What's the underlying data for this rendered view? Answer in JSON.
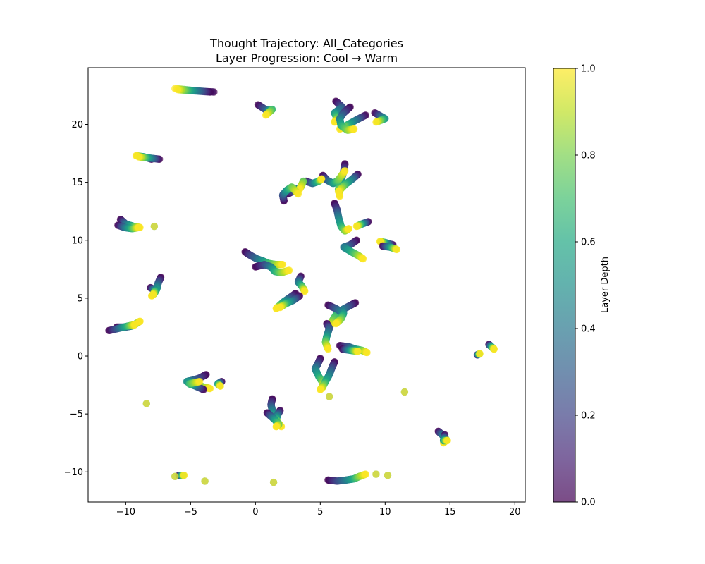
{
  "chart_data": {
    "type": "scatter",
    "title": "Thought Trajectory: All_Categories",
    "subtitle": "Layer Progression: Cool → Warm",
    "xlabel": "",
    "ylabel": "",
    "xlim": [
      -12.9,
      20.8
    ],
    "ylim": [
      -12.6,
      24.9
    ],
    "xticks": [
      -10,
      -5,
      0,
      5,
      10,
      15,
      20
    ],
    "yticks": [
      -10,
      -5,
      0,
      5,
      10,
      15,
      20
    ],
    "xtick_labels": [
      "−10",
      "−5",
      "0",
      "5",
      "10",
      "15",
      "20"
    ],
    "ytick_labels": [
      "−10",
      "−5",
      "0",
      "5",
      "10",
      "15",
      "20"
    ],
    "colormap": "viridis",
    "marker_alpha": 0.7,
    "colorbar": {
      "label": "Layer Depth",
      "range": [
        0.0,
        1.0
      ],
      "ticks": [
        "0.0",
        "0.2",
        "0.4",
        "0.6",
        "0.8",
        "1.0"
      ]
    },
    "trajectories": [
      {
        "points": [
          [
            -3.2,
            22.8
          ],
          [
            -4.5,
            22.9
          ],
          [
            -6.2,
            23.1
          ]
        ]
      },
      {
        "points": [
          [
            -3.5,
            22.8
          ],
          [
            -4.8,
            22.9
          ],
          [
            -6.0,
            23.0
          ]
        ]
      },
      {
        "points": [
          [
            0.2,
            21.7
          ],
          [
            0.9,
            21.2
          ],
          [
            1.3,
            21.3
          ],
          [
            0.8,
            20.8
          ]
        ]
      },
      {
        "points": [
          [
            -8.0,
            17.0
          ],
          [
            -8.6,
            17.2
          ],
          [
            -9.2,
            17.3
          ]
        ]
      },
      {
        "points": [
          [
            -7.4,
            17.0
          ],
          [
            -8.2,
            17.1
          ],
          [
            -9.0,
            17.2
          ]
        ]
      },
      {
        "points": [
          [
            8.5,
            20.8
          ],
          [
            7.8,
            20.4
          ],
          [
            7.0,
            19.9
          ],
          [
            6.5,
            19.6
          ]
        ]
      },
      {
        "points": [
          [
            9.2,
            21.0
          ],
          [
            10.0,
            20.5
          ],
          [
            9.3,
            20.2
          ]
        ]
      },
      {
        "points": [
          [
            6.2,
            22.0
          ],
          [
            6.7,
            21.5
          ],
          [
            6.1,
            21.0
          ],
          [
            6.3,
            20.5
          ],
          [
            6.1,
            20.2
          ]
        ]
      },
      {
        "points": [
          [
            7.3,
            21.5
          ],
          [
            6.8,
            21.0
          ],
          [
            6.5,
            20.5
          ],
          [
            6.6,
            19.9
          ],
          [
            7.1,
            19.5
          ],
          [
            7.6,
            19.6
          ]
        ]
      },
      {
        "points": [
          [
            6.9,
            16.6
          ],
          [
            6.8,
            15.9
          ],
          [
            6.6,
            15.2
          ],
          [
            6.4,
            14.4
          ],
          [
            6.5,
            13.8
          ]
        ]
      },
      {
        "points": [
          [
            7.9,
            15.7
          ],
          [
            7.5,
            15.3
          ],
          [
            6.9,
            14.8
          ],
          [
            6.4,
            14.2
          ]
        ]
      },
      {
        "points": [
          [
            5.2,
            15.6
          ],
          [
            5.5,
            15.2
          ],
          [
            6.0,
            14.9
          ],
          [
            6.4,
            15.2
          ],
          [
            6.9,
            16.0
          ]
        ]
      },
      {
        "points": [
          [
            3.9,
            15.1
          ],
          [
            4.4,
            14.9
          ],
          [
            4.9,
            15.1
          ],
          [
            5.1,
            15.3
          ]
        ]
      },
      {
        "points": [
          [
            2.5,
            14.0
          ],
          [
            3.0,
            14.3
          ],
          [
            3.5,
            14.6
          ],
          [
            3.7,
            15.1
          ],
          [
            3.4,
            14.4
          ]
        ]
      },
      {
        "points": [
          [
            2.2,
            13.4
          ],
          [
            2.1,
            13.9
          ],
          [
            2.4,
            14.3
          ],
          [
            2.8,
            14.6
          ],
          [
            3.3,
            14.0
          ]
        ]
      },
      {
        "points": [
          [
            6.1,
            13.2
          ],
          [
            6.3,
            12.6
          ],
          [
            6.4,
            12.0
          ],
          [
            6.6,
            11.2
          ],
          [
            6.9,
            10.8
          ],
          [
            7.2,
            11.0
          ]
        ]
      },
      {
        "points": [
          [
            8.7,
            11.6
          ],
          [
            8.2,
            11.4
          ],
          [
            7.8,
            11.2
          ]
        ]
      },
      {
        "points": [
          [
            7.8,
            10.0
          ],
          [
            7.3,
            9.6
          ],
          [
            6.8,
            9.4
          ],
          [
            7.4,
            9.0
          ],
          [
            7.9,
            8.7
          ],
          [
            8.3,
            8.4
          ]
        ]
      },
      {
        "points": [
          [
            10.6,
            9.6
          ],
          [
            10.0,
            9.8
          ],
          [
            9.6,
            9.9
          ]
        ]
      },
      {
        "points": [
          [
            9.8,
            9.5
          ],
          [
            10.4,
            9.4
          ],
          [
            10.9,
            9.2
          ]
        ]
      },
      {
        "points": [
          [
            -10.4,
            11.8
          ],
          [
            -10.0,
            11.4
          ],
          [
            -9.4,
            11.2
          ],
          [
            -8.9,
            11.1
          ]
        ]
      },
      {
        "points": [
          [
            -10.6,
            11.3
          ],
          [
            -10.1,
            11.1
          ],
          [
            -9.5,
            11.0
          ],
          [
            -9.0,
            11.1
          ]
        ]
      },
      {
        "points": [
          [
            -7.8,
            11.2
          ]
        ]
      },
      {
        "points": [
          [
            -0.8,
            9.0
          ],
          [
            -0.4,
            8.7
          ],
          [
            0.1,
            8.4
          ],
          [
            0.6,
            8.2
          ],
          [
            1.0,
            8.0
          ],
          [
            1.6,
            7.9
          ],
          [
            2.1,
            7.9
          ]
        ]
      },
      {
        "points": [
          [
            0.0,
            7.7
          ],
          [
            0.7,
            7.9
          ],
          [
            1.2,
            7.7
          ],
          [
            1.5,
            7.3
          ],
          [
            2.0,
            7.2
          ],
          [
            2.6,
            7.4
          ]
        ]
      },
      {
        "points": [
          [
            3.5,
            6.9
          ],
          [
            3.3,
            6.4
          ],
          [
            3.6,
            6.0
          ],
          [
            3.8,
            5.6
          ]
        ]
      },
      {
        "points": [
          [
            3.1,
            5.4
          ],
          [
            2.6,
            5.0
          ],
          [
            2.2,
            4.7
          ],
          [
            1.8,
            4.3
          ],
          [
            1.6,
            4.1
          ]
        ]
      },
      {
        "points": [
          [
            3.4,
            5.2
          ],
          [
            2.9,
            4.8
          ],
          [
            2.3,
            4.5
          ],
          [
            1.9,
            4.2
          ]
        ]
      },
      {
        "points": [
          [
            -7.3,
            6.8
          ],
          [
            -7.5,
            6.3
          ],
          [
            -7.6,
            5.8
          ],
          [
            -7.8,
            5.4
          ],
          [
            -8.0,
            5.2
          ]
        ]
      },
      {
        "points": [
          [
            -8.1,
            5.9
          ],
          [
            -7.7,
            5.7
          ],
          [
            -7.9,
            5.3
          ]
        ]
      },
      {
        "points": [
          [
            -10.7,
            2.5
          ],
          [
            -10.0,
            2.5
          ],
          [
            -9.5,
            2.6
          ],
          [
            -9.2,
            2.8
          ],
          [
            -8.9,
            3.0
          ]
        ]
      },
      {
        "points": [
          [
            -11.3,
            2.2
          ],
          [
            -10.5,
            2.4
          ],
          [
            -9.8,
            2.6
          ],
          [
            -9.3,
            2.7
          ]
        ]
      },
      {
        "points": [
          [
            7.7,
            4.6
          ],
          [
            7.2,
            4.3
          ],
          [
            6.7,
            4.0
          ],
          [
            6.3,
            3.7
          ],
          [
            5.9,
            3.0
          ],
          [
            5.7,
            2.4
          ]
        ]
      },
      {
        "points": [
          [
            5.6,
            4.4
          ],
          [
            6.2,
            4.1
          ],
          [
            6.8,
            3.7
          ],
          [
            6.6,
            3.2
          ],
          [
            6.2,
            2.8
          ]
        ]
      },
      {
        "points": [
          [
            5.5,
            2.8
          ],
          [
            5.7,
            2.4
          ],
          [
            5.5,
            1.7
          ],
          [
            5.4,
            1.2
          ],
          [
            5.6,
            0.6
          ]
        ]
      },
      {
        "points": [
          [
            6.5,
            0.9
          ],
          [
            7.2,
            0.8
          ],
          [
            7.7,
            0.6
          ],
          [
            8.2,
            0.5
          ],
          [
            8.6,
            0.3
          ]
        ]
      },
      {
        "points": [
          [
            6.7,
            0.6
          ],
          [
            7.3,
            0.5
          ],
          [
            7.9,
            0.4
          ]
        ]
      },
      {
        "points": [
          [
            5.0,
            -0.2
          ],
          [
            4.8,
            -0.7
          ],
          [
            4.6,
            -1.1
          ],
          [
            4.9,
            -1.8
          ],
          [
            5.2,
            -2.3
          ],
          [
            5.2,
            -2.7
          ]
        ]
      },
      {
        "points": [
          [
            6.1,
            -0.5
          ],
          [
            5.9,
            -1.0
          ],
          [
            5.7,
            -1.6
          ],
          [
            5.4,
            -2.2
          ],
          [
            5.2,
            -2.6
          ],
          [
            5.0,
            -2.9
          ]
        ]
      },
      {
        "points": [
          [
            5.7,
            -3.5
          ]
        ]
      },
      {
        "points": [
          [
            18.0,
            1.0
          ],
          [
            18.2,
            0.8
          ],
          [
            18.4,
            0.6
          ]
        ]
      },
      {
        "points": [
          [
            17.1,
            0.1
          ],
          [
            17.3,
            0.2
          ]
        ]
      },
      {
        "points": [
          [
            -3.8,
            -1.6
          ],
          [
            -4.3,
            -1.9
          ],
          [
            -4.9,
            -2.1
          ],
          [
            -5.3,
            -2.2
          ],
          [
            -4.5,
            -2.5
          ],
          [
            -3.9,
            -2.7
          ],
          [
            -3.5,
            -2.8
          ]
        ]
      },
      {
        "points": [
          [
            -4.0,
            -2.9
          ],
          [
            -4.6,
            -2.6
          ],
          [
            -5.1,
            -2.4
          ],
          [
            -4.3,
            -2.2
          ]
        ]
      },
      {
        "points": [
          [
            -2.6,
            -2.2
          ],
          [
            -2.9,
            -2.4
          ],
          [
            -2.7,
            -2.6
          ]
        ]
      },
      {
        "points": [
          [
            -8.4,
            -4.1
          ]
        ]
      },
      {
        "points": [
          [
            1.3,
            -3.7
          ],
          [
            1.2,
            -4.2
          ],
          [
            1.3,
            -4.7
          ],
          [
            1.4,
            -5.3
          ],
          [
            1.7,
            -5.7
          ],
          [
            2.0,
            -6.1
          ]
        ]
      },
      {
        "points": [
          [
            1.9,
            -4.7
          ],
          [
            1.7,
            -5.1
          ],
          [
            1.6,
            -5.5
          ],
          [
            1.8,
            -5.9
          ]
        ]
      },
      {
        "points": [
          [
            0.9,
            -4.9
          ],
          [
            1.2,
            -5.2
          ],
          [
            1.5,
            -5.5
          ],
          [
            1.8,
            -5.9
          ],
          [
            1.6,
            -6.1
          ]
        ]
      },
      {
        "points": [
          [
            11.5,
            -3.1
          ]
        ]
      },
      {
        "points": [
          [
            14.1,
            -6.5
          ],
          [
            14.4,
            -6.8
          ],
          [
            14.7,
            -7.2
          ],
          [
            14.5,
            -7.5
          ]
        ]
      },
      {
        "points": [
          [
            14.6,
            -6.8
          ],
          [
            14.5,
            -7.3
          ],
          [
            14.8,
            -7.3
          ]
        ]
      },
      {
        "points": [
          [
            -5.9,
            -10.3
          ],
          [
            -5.5,
            -10.3
          ]
        ]
      },
      {
        "points": [
          [
            -6.2,
            -10.4
          ]
        ]
      },
      {
        "points": [
          [
            -3.9,
            -10.8
          ]
        ]
      },
      {
        "points": [
          [
            1.4,
            -10.9
          ]
        ]
      },
      {
        "points": [
          [
            5.6,
            -10.7
          ],
          [
            6.3,
            -10.8
          ],
          [
            7.0,
            -10.7
          ],
          [
            7.6,
            -10.6
          ],
          [
            8.0,
            -10.4
          ],
          [
            8.5,
            -10.2
          ]
        ]
      },
      {
        "points": [
          [
            9.3,
            -10.2
          ]
        ]
      },
      {
        "points": [
          [
            10.2,
            -10.3
          ]
        ]
      }
    ]
  }
}
